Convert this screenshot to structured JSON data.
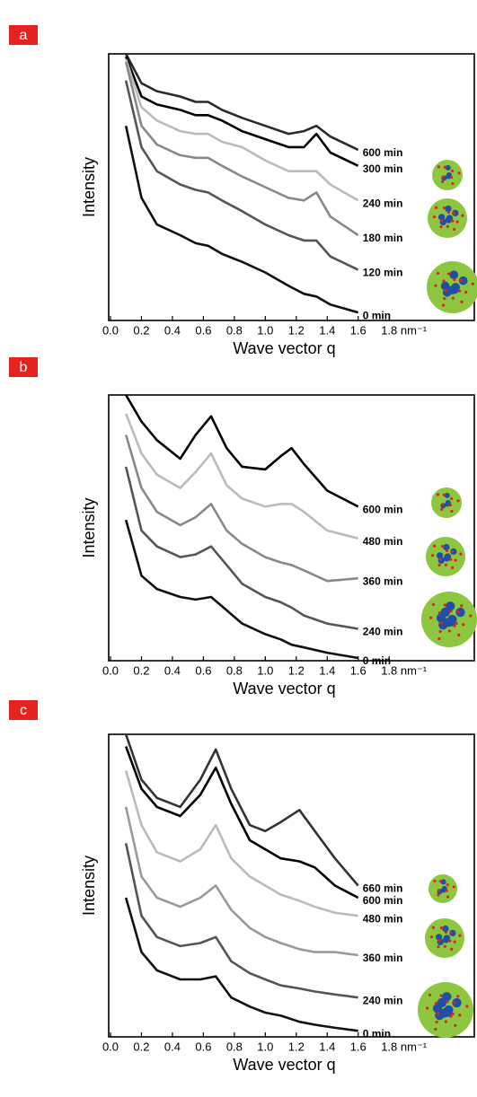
{
  "chart_data": [
    {
      "type": "line",
      "label": "a",
      "y_label": "Intensity",
      "x_label": "Wave vector q",
      "xlim": [
        0,
        2.35
      ],
      "ylim": [
        0,
        100
      ],
      "xticks": [
        {
          "value": 0,
          "label": "0.0"
        },
        0.2,
        0.4,
        0.6,
        0.8,
        {
          "value": 1,
          "label": "1.0"
        },
        1.2,
        1.4,
        1.6,
        {
          "value": 1.8,
          "label": "1.8 nm⁻¹"
        }
      ],
      "x": [
        0.1,
        0.2,
        0.3,
        0.45,
        0.55,
        0.63,
        0.72,
        0.85,
        1.0,
        1.15,
        1.25,
        1.33,
        1.42,
        1.6
      ],
      "series": [
        {
          "name": "600 min",
          "color": "#2a2a2a",
          "values": [
            100,
            89,
            86,
            84,
            82,
            82,
            79,
            76,
            73,
            70,
            71,
            73,
            69,
            64
          ]
        },
        {
          "name": "300 min",
          "color": "#000000",
          "values": [
            99,
            84,
            81,
            79,
            77,
            77,
            75,
            71,
            68,
            65,
            65,
            70,
            63,
            58
          ]
        },
        {
          "name": "240 min",
          "color": "#bbbbbb",
          "values": [
            98,
            80,
            75,
            71,
            70,
            70,
            67,
            65,
            60,
            56,
            56,
            56,
            51,
            45
          ]
        },
        {
          "name": "180 min",
          "color": "#888888",
          "values": [
            97,
            73,
            66,
            62,
            61,
            61,
            58,
            54,
            50,
            46,
            45,
            48,
            39,
            32
          ]
        },
        {
          "name": "120 min",
          "color": "#555555",
          "values": [
            90,
            65,
            56,
            51,
            49,
            48,
            45,
            41,
            36,
            32,
            30,
            30,
            24,
            19
          ]
        },
        {
          "name": "0 min",
          "color": "#111111",
          "values": [
            73,
            46,
            36,
            32,
            29,
            28,
            25,
            22,
            18,
            13,
            10,
            9,
            6,
            3
          ]
        }
      ]
    },
    {
      "type": "line",
      "label": "b",
      "y_label": "Intensity",
      "x_label": "Wave vector q",
      "xlim": [
        0,
        2.35
      ],
      "ylim": [
        0,
        100
      ],
      "xticks": [
        {
          "value": 0,
          "label": "0.0"
        },
        0.2,
        0.4,
        0.6,
        0.8,
        {
          "value": 1,
          "label": "1.0"
        },
        1.2,
        1.4,
        1.6,
        {
          "value": 1.8,
          "label": "1.8 nm⁻¹"
        }
      ],
      "x": [
        0.1,
        0.2,
        0.3,
        0.45,
        0.55,
        0.65,
        0.75,
        0.85,
        1.0,
        1.1,
        1.17,
        1.25,
        1.4,
        1.6
      ],
      "series": [
        {
          "name": "600 min",
          "color": "#000000",
          "values": [
            100,
            90,
            83,
            76,
            85,
            92,
            80,
            73,
            72,
            77,
            80,
            74,
            64,
            58
          ]
        },
        {
          "name": "480 min",
          "color": "#bbbbbb",
          "values": [
            93,
            78,
            70,
            65,
            71,
            78,
            66,
            61,
            58,
            59,
            59,
            56,
            49,
            46
          ]
        },
        {
          "name": "360 min",
          "color": "#888888",
          "values": [
            85,
            65,
            56,
            51,
            54,
            59,
            49,
            44,
            39,
            37,
            36,
            34,
            30,
            31
          ]
        },
        {
          "name": "240 min",
          "color": "#555555",
          "values": [
            73,
            49,
            43,
            39,
            40,
            43,
            36,
            29,
            24,
            22,
            20,
            17,
            14,
            12
          ]
        },
        {
          "name": "0 min",
          "color": "#111111",
          "values": [
            53,
            32,
            27,
            24,
            23,
            24,
            19,
            14,
            10,
            8,
            6,
            5,
            3,
            1
          ]
        }
      ]
    },
    {
      "type": "line",
      "label": "c",
      "y_label": "Intensity",
      "x_label": "Wave vector q",
      "xlim": [
        0,
        2.35
      ],
      "ylim": [
        0,
        100
      ],
      "xticks": [
        {
          "value": 0,
          "label": "0.0"
        },
        0.2,
        0.4,
        0.6,
        0.8,
        {
          "value": 1,
          "label": "1.0"
        },
        1.2,
        1.4,
        1.6,
        {
          "value": 1.8,
          "label": "1.8 nm⁻¹"
        }
      ],
      "x": [
        0.1,
        0.2,
        0.3,
        0.45,
        0.58,
        0.68,
        0.78,
        0.9,
        1.0,
        1.1,
        1.22,
        1.32,
        1.45,
        1.6
      ],
      "series": [
        {
          "name": "660 min",
          "color": "#333333",
          "values": [
            100,
            85,
            79,
            76,
            85,
            95,
            82,
            70,
            68,
            71,
            75,
            68,
            59,
            50
          ]
        },
        {
          "name": "600 min",
          "color": "#000000",
          "values": [
            96,
            82,
            76,
            73,
            80,
            89,
            77,
            65,
            62,
            59,
            58,
            56,
            50,
            46
          ]
        },
        {
          "name": "480 min",
          "color": "#bbbbbb",
          "values": [
            88,
            70,
            61,
            58,
            62,
            70,
            59,
            53,
            50,
            47,
            45,
            43,
            41,
            40
          ]
        },
        {
          "name": "360 min",
          "color": "#999999",
          "values": [
            76,
            53,
            46,
            43,
            46,
            50,
            42,
            36,
            33,
            31,
            29,
            28,
            28,
            27
          ]
        },
        {
          "name": "240 min",
          "color": "#555555",
          "values": [
            64,
            40,
            33,
            30,
            31,
            33,
            25,
            21,
            19,
            17,
            16,
            15,
            14,
            13
          ]
        },
        {
          "name": "0 min",
          "color": "#111111",
          "values": [
            46,
            28,
            22,
            19,
            19,
            20,
            13,
            10,
            8,
            7,
            5,
            4,
            3,
            2
          ]
        }
      ]
    }
  ]
}
